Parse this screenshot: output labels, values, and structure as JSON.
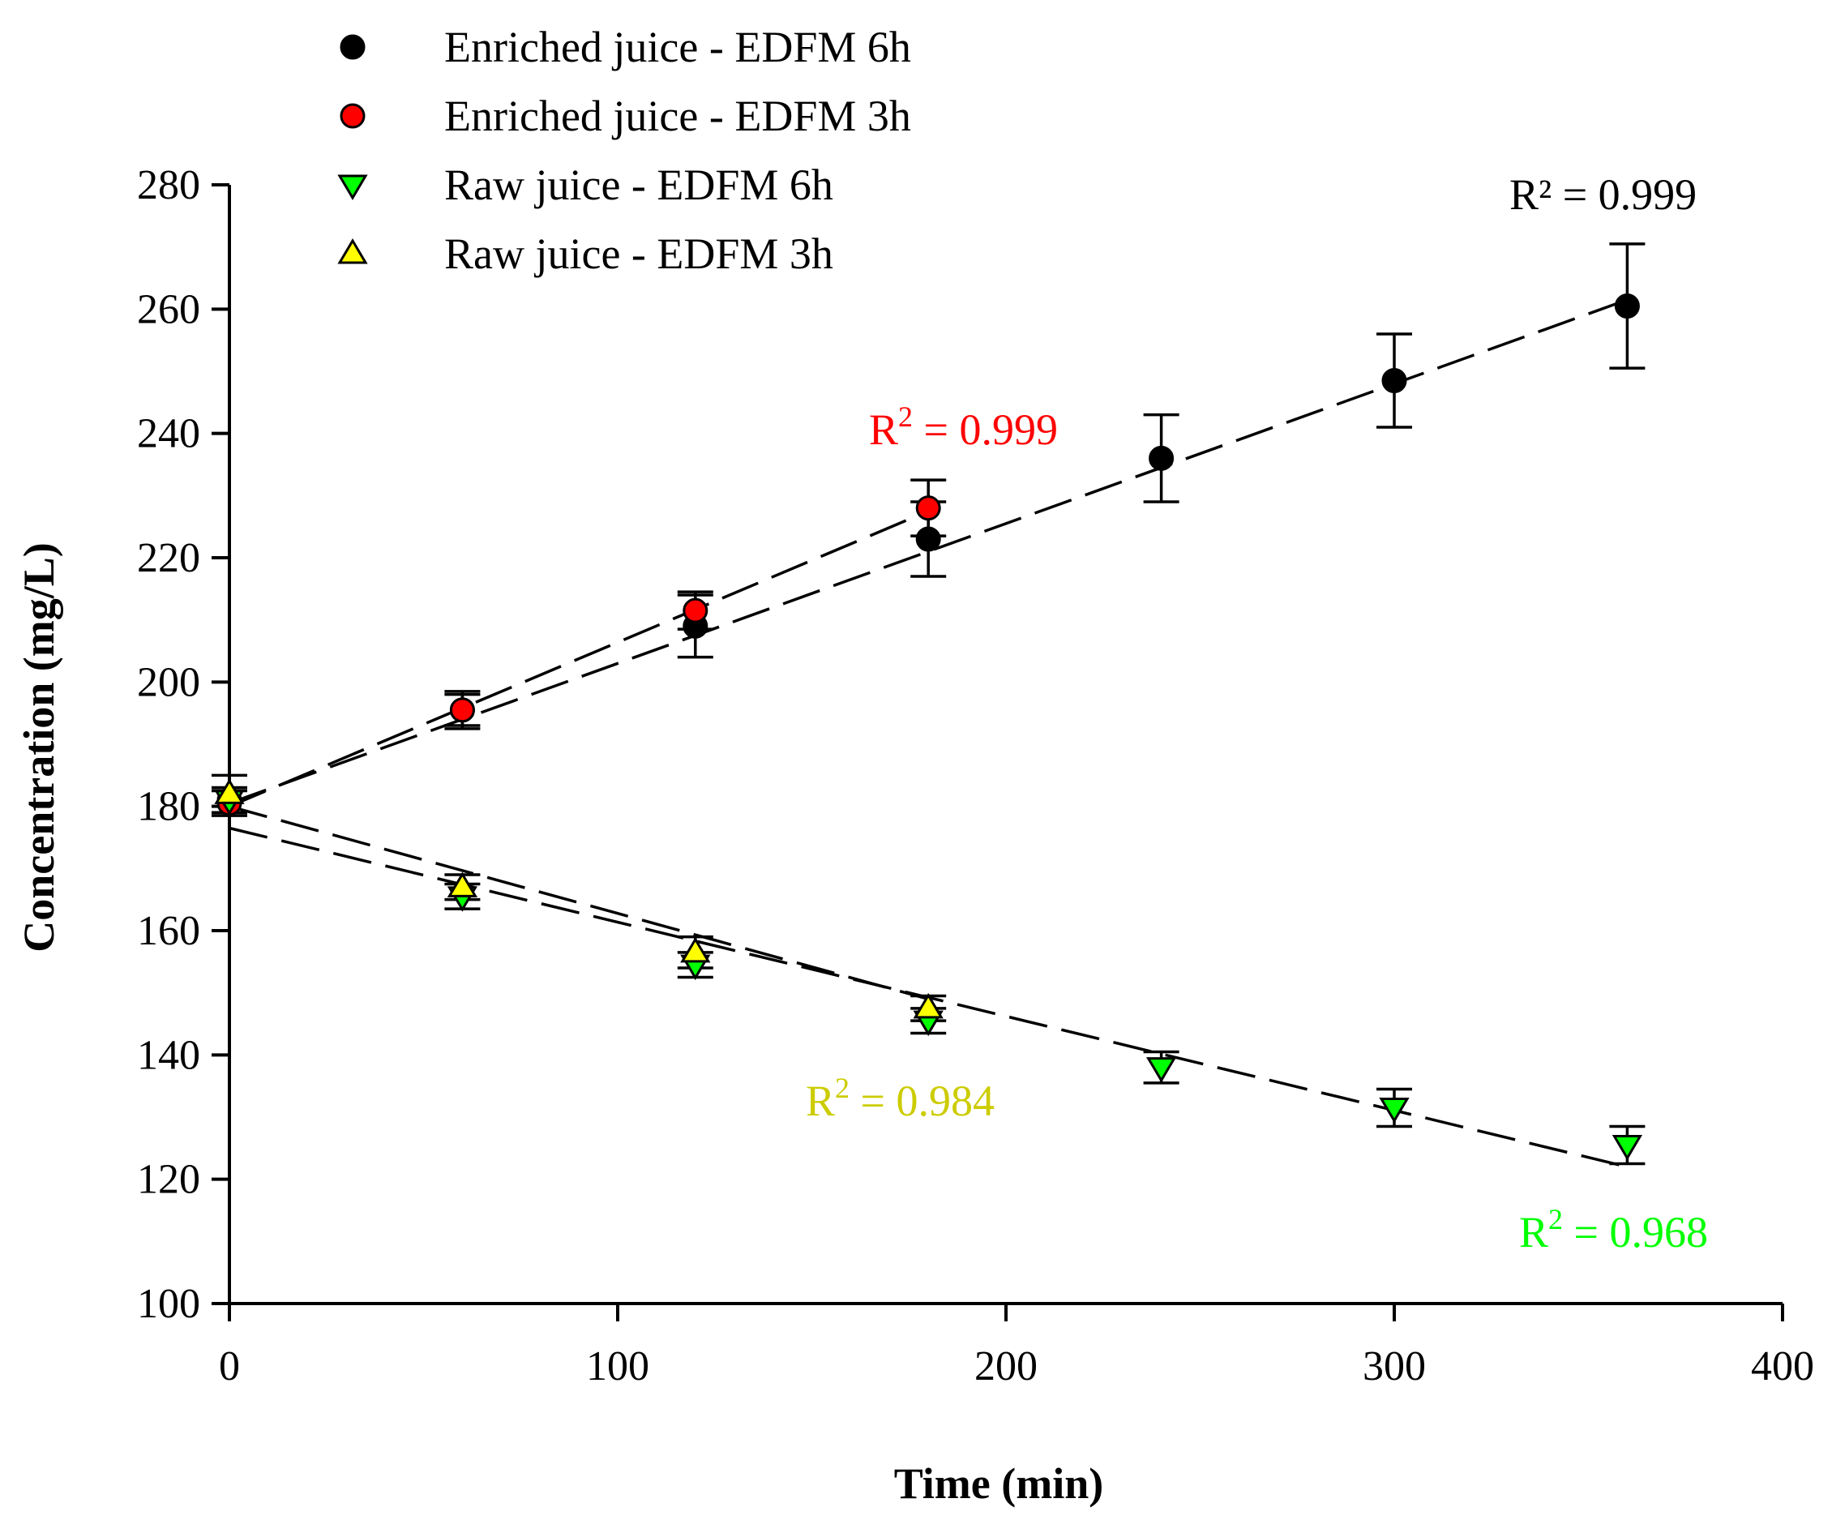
{
  "chart_data": {
    "type": "scatter",
    "xlabel": "Time (min)",
    "ylabel": "Concentration (mg/L)",
    "xlim": [
      0,
      400
    ],
    "ylim": [
      100,
      280
    ],
    "x_ticks": [
      0,
      100,
      200,
      300,
      400
    ],
    "y_ticks": [
      100,
      120,
      140,
      160,
      180,
      200,
      220,
      240,
      260,
      280
    ],
    "grid": false,
    "legend_position": "top-left",
    "series": [
      {
        "name": "Enriched juice - EDFM 6h",
        "marker": "circle",
        "color": "#000000",
        "x": [
          0,
          60,
          120,
          180,
          240,
          300,
          360
        ],
        "y": [
          181,
          195.5,
          209,
          223,
          236,
          248.5,
          260.5
        ],
        "error": [
          2,
          3,
          5,
          6,
          7,
          7.5,
          10
        ],
        "fit": {
          "x0": 0,
          "y0": 180.5,
          "x1": 360,
          "y1": 261.5
        },
        "r2": "R² = 0.999",
        "r2_color": "#000000"
      },
      {
        "name": "Enriched juice - EDFM 3h",
        "marker": "circle",
        "color": "#ff0000",
        "x": [
          0,
          60,
          120,
          180
        ],
        "y": [
          180.5,
          195.5,
          211.5,
          228
        ],
        "error": [
          2,
          2.5,
          3,
          4.5
        ],
        "fit": {
          "x0": 0,
          "y0": 180,
          "x1": 180,
          "y1": 227.5
        },
        "r2": "R = 0.999",
        "r2_color": "#ff0000"
      },
      {
        "name": "Raw juice - EDFM 6h",
        "marker": "triangle-down",
        "color": "#00ff00",
        "x": [
          0,
          60,
          120,
          180,
          240,
          300,
          360
        ],
        "y": [
          181,
          165.5,
          154.5,
          145.5,
          138,
          131.5,
          125.5
        ],
        "error": [
          2,
          2,
          2,
          2,
          2.5,
          3,
          3
        ],
        "fit": {
          "x0": 0,
          "y0": 176.5,
          "x1": 360,
          "y1": 122
        },
        "r2": "R = 0.968",
        "r2_color": "#00ff00"
      },
      {
        "name": "Raw juice - EDFM 3h",
        "marker": "triangle-up",
        "color": "#ffff00",
        "x": [
          0,
          60,
          120,
          180
        ],
        "y": [
          182,
          167,
          156.5,
          147.5
        ],
        "error": [
          3,
          2,
          2.5,
          2
        ],
        "fit": {
          "x0": 0,
          "y0": 180,
          "x1": 180,
          "y1": 149
        },
        "r2": "R = 0.984",
        "r2_color": "#cccc00"
      }
    ]
  }
}
